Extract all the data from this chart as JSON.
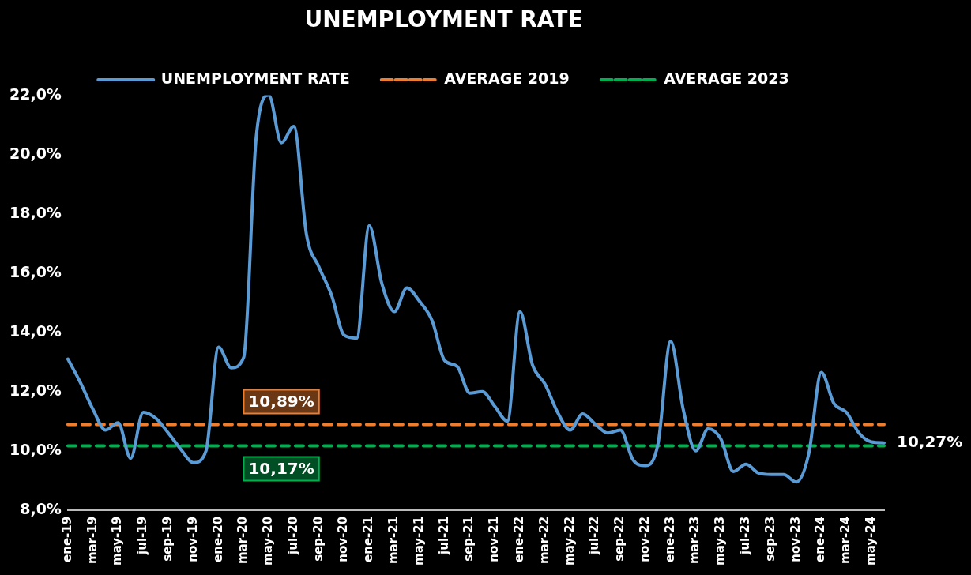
{
  "chart_data": {
    "type": "line",
    "title": "UNEMPLOYMENT RATE",
    "categories": [
      "ene-19",
      null,
      "mar-19",
      null,
      "may-19",
      null,
      "jul-19",
      null,
      "sep-19",
      null,
      "nov-19",
      null,
      "ene-20",
      null,
      "mar-20",
      null,
      "may-20",
      null,
      "jul-20",
      null,
      "sep-20",
      null,
      "nov-20",
      null,
      "ene-21",
      null,
      "mar-21",
      null,
      "may-21",
      null,
      "jul-21",
      null,
      "sep-21",
      null,
      "nov-21",
      null,
      "ene-22",
      null,
      "mar-22",
      null,
      "may-22",
      null,
      "jul-22",
      null,
      "sep-22",
      null,
      "nov-22",
      null,
      "ene-23",
      null,
      "mar-23",
      null,
      "may-23",
      null,
      "jul-23",
      null,
      "sep-23",
      null,
      "nov-23",
      null,
      "ene-24",
      null,
      "mar-24",
      null,
      "may-24",
      null
    ],
    "series": [
      {
        "name": "UNEMPLOYMENT RATE",
        "color": "#5b9bd5",
        "line_style": "solid",
        "values": [
          13.1,
          12.3,
          11.4,
          10.7,
          10.95,
          9.75,
          11.3,
          11.1,
          10.6,
          10.05,
          9.6,
          10.0,
          13.5,
          12.8,
          13.15,
          20.6,
          22.0,
          20.4,
          20.95,
          17.3,
          16.2,
          15.25,
          13.9,
          13.8,
          17.6,
          15.65,
          14.7,
          15.5,
          15.05,
          14.4,
          13.05,
          12.85,
          11.95,
          12.0,
          11.5,
          11.0,
          14.7,
          12.9,
          12.25,
          11.3,
          10.7,
          11.25,
          10.9,
          10.6,
          10.7,
          9.7,
          9.5,
          10.25,
          13.7,
          11.4,
          10.0,
          10.75,
          10.4,
          9.3,
          9.55,
          9.25,
          9.2,
          9.2,
          8.95,
          9.9,
          12.65,
          11.6,
          11.3,
          10.6,
          10.3,
          10.27
        ],
        "value_labels": [
          null,
          null,
          null,
          null,
          null,
          null,
          null,
          null,
          null,
          null,
          null,
          null,
          null,
          null,
          null,
          null,
          null,
          null,
          null,
          null,
          null,
          null,
          null,
          null,
          null,
          null,
          null,
          null,
          null,
          null,
          null,
          null,
          null,
          null,
          null,
          null,
          null,
          null,
          null,
          null,
          null,
          null,
          null,
          null,
          null,
          null,
          null,
          null,
          null,
          null,
          null,
          null,
          null,
          null,
          null,
          null,
          null,
          null,
          null,
          null,
          null,
          null,
          null,
          null,
          null,
          "10,27%"
        ]
      },
      {
        "name": "AVERAGE 2019",
        "color": "#ed7d31",
        "line_style": "dashed",
        "values": [
          10.89,
          10.89,
          10.89,
          10.89,
          10.89,
          10.89,
          10.89,
          10.89,
          10.89,
          10.89,
          10.89,
          10.89,
          10.89,
          10.89,
          10.89,
          10.89,
          10.89,
          10.89,
          10.89,
          10.89,
          10.89,
          10.89,
          10.89,
          10.89,
          10.89,
          10.89,
          10.89,
          10.89,
          10.89,
          10.89,
          10.89,
          10.89,
          10.89,
          10.89,
          10.89,
          10.89,
          10.89,
          10.89,
          10.89,
          10.89,
          10.89,
          10.89,
          10.89,
          10.89,
          10.89,
          10.89,
          10.89,
          10.89,
          10.89,
          10.89,
          10.89,
          10.89,
          10.89,
          10.89,
          10.89,
          10.89,
          10.89,
          10.89,
          10.89,
          10.89,
          10.89,
          10.89,
          10.89,
          10.89,
          10.89,
          10.89
        ],
        "value_labels": [
          null,
          null,
          null,
          null,
          null,
          null,
          null,
          null,
          null,
          null,
          null,
          null,
          null,
          null,
          null,
          null,
          null,
          "10,89%",
          null,
          null,
          null,
          null,
          null,
          null,
          null,
          null,
          null,
          null,
          null,
          null,
          null,
          null,
          null,
          null,
          null,
          null,
          null,
          null,
          null,
          null,
          null,
          null,
          null,
          null,
          null,
          null,
          null,
          null,
          null,
          null,
          null,
          null,
          null,
          null,
          null,
          null,
          null,
          null,
          null,
          null,
          null,
          null,
          null,
          null,
          null,
          null
        ]
      },
      {
        "name": "AVERAGE 2023",
        "color": "#00b050",
        "line_style": "dashed",
        "values": [
          10.17,
          10.17,
          10.17,
          10.17,
          10.17,
          10.17,
          10.17,
          10.17,
          10.17,
          10.17,
          10.17,
          10.17,
          10.17,
          10.17,
          10.17,
          10.17,
          10.17,
          10.17,
          10.17,
          10.17,
          10.17,
          10.17,
          10.17,
          10.17,
          10.17,
          10.17,
          10.17,
          10.17,
          10.17,
          10.17,
          10.17,
          10.17,
          10.17,
          10.17,
          10.17,
          10.17,
          10.17,
          10.17,
          10.17,
          10.17,
          10.17,
          10.17,
          10.17,
          10.17,
          10.17,
          10.17,
          10.17,
          10.17,
          10.17,
          10.17,
          10.17,
          10.17,
          10.17,
          10.17,
          10.17,
          10.17,
          10.17,
          10.17,
          10.17,
          10.17,
          10.17,
          10.17,
          10.17,
          10.17,
          10.17,
          10.17
        ],
        "value_labels": [
          null,
          null,
          null,
          null,
          null,
          null,
          null,
          null,
          null,
          null,
          null,
          null,
          null,
          null,
          null,
          null,
          null,
          "10,17%",
          null,
          null,
          null,
          null,
          null,
          null,
          null,
          null,
          null,
          null,
          null,
          null,
          null,
          null,
          null,
          null,
          null,
          null,
          null,
          null,
          null,
          null,
          null,
          null,
          null,
          null,
          null,
          null,
          null,
          null,
          null,
          null,
          null,
          null,
          null,
          null,
          null,
          null,
          null,
          null,
          null,
          null,
          null,
          null,
          null,
          null,
          null,
          null
        ]
      }
    ],
    "ylim": [
      8,
      22
    ],
    "yticks": [
      {
        "value": 8,
        "label": "8,0%"
      },
      {
        "value": 10,
        "label": "10,0%"
      },
      {
        "value": 12,
        "label": "12,0%"
      },
      {
        "value": 14,
        "label": "14,0%"
      },
      {
        "value": 16,
        "label": "16,0%"
      },
      {
        "value": 18,
        "label": "18,0%"
      },
      {
        "value": 20,
        "label": "20,0%"
      },
      {
        "value": 22,
        "label": "22,0%"
      }
    ],
    "grid": false,
    "legend": "top",
    "marker": "none"
  }
}
